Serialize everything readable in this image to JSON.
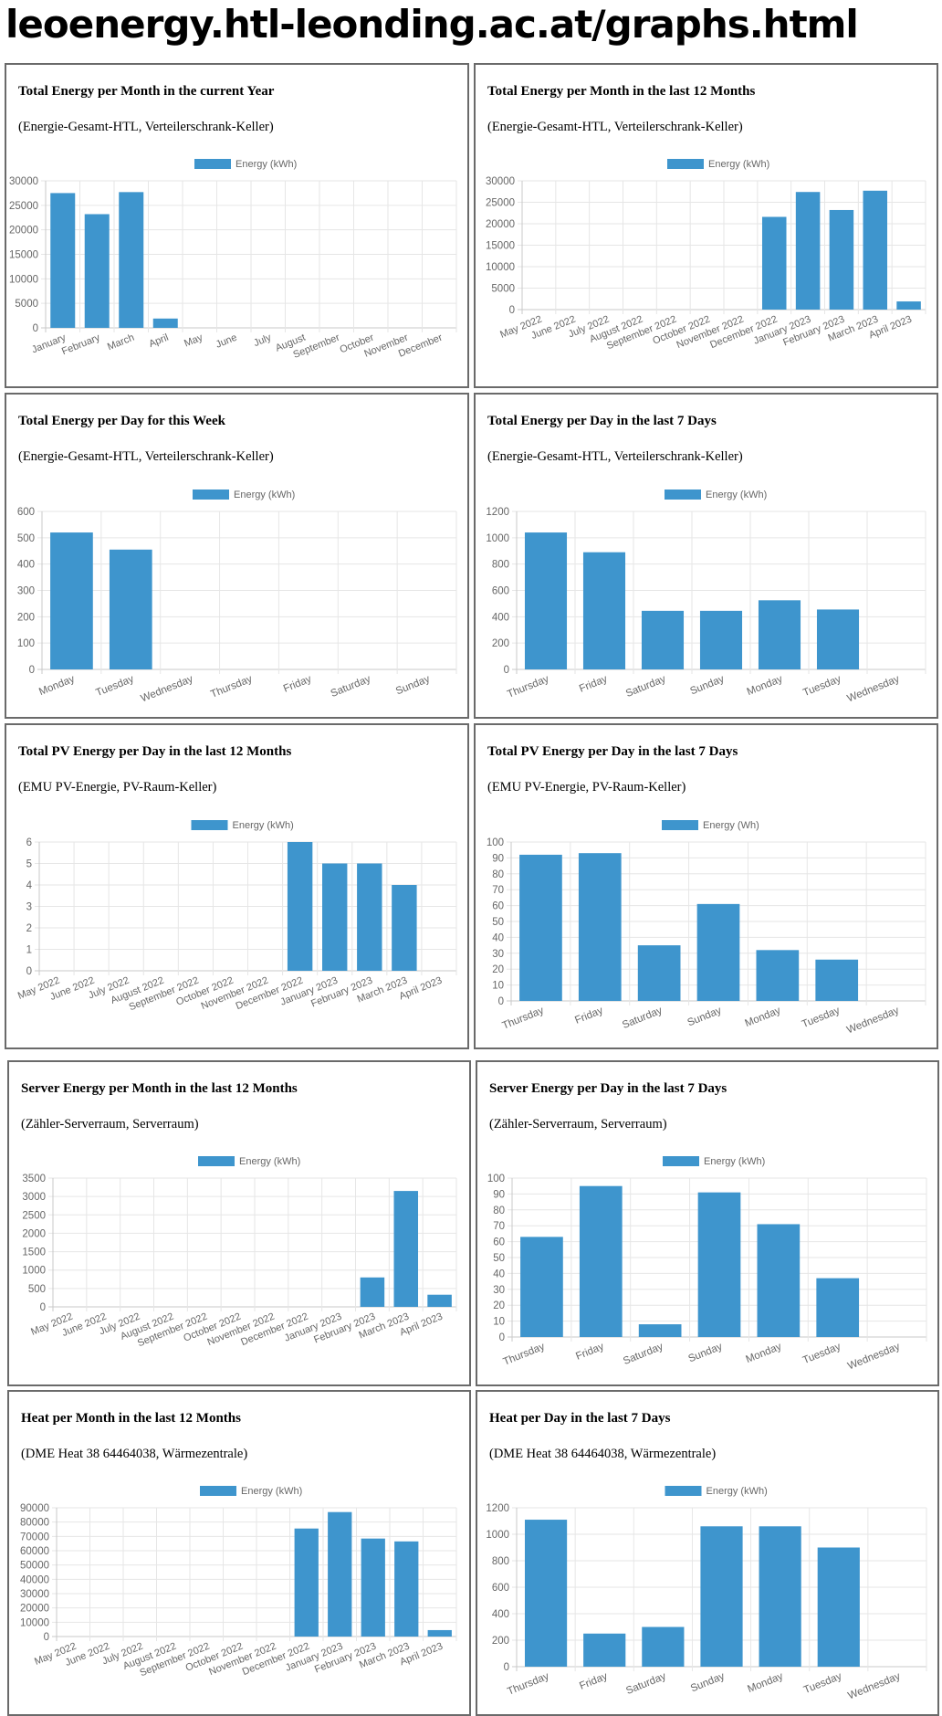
{
  "page": {
    "title": "leoenergy.htl-leonding.ac.at/graphs.html"
  },
  "colors": {
    "bar": "#3e95cd",
    "grid": "#e6e6e6",
    "axis": "#c8c8c8",
    "text": "#666666",
    "border": "#6a6a6a"
  },
  "chart_data": [
    {
      "type": "bar",
      "title": "Total Energy per Month in the current Year",
      "subtitle": "(Energie-Gesamt-HTL, Verteilerschrank-Keller)",
      "legend": "Energy (kWh)",
      "legend_position": "top-center",
      "grid": true,
      "categories": [
        "January",
        "February",
        "March",
        "April",
        "May",
        "June",
        "July",
        "August",
        "September",
        "October",
        "November",
        "December"
      ],
      "values": [
        27500,
        23200,
        27700,
        1900,
        0,
        0,
        0,
        0,
        0,
        0,
        0,
        0
      ],
      "ylim": [
        0,
        30000
      ],
      "yticks": [
        0,
        5000,
        10000,
        15000,
        20000,
        25000,
        30000
      ]
    },
    {
      "type": "bar",
      "title": "Total Energy per Month in the last 12 Months",
      "subtitle": "(Energie-Gesamt-HTL, Verteilerschrank-Keller)",
      "legend": "Energy (kWh)",
      "legend_position": "top-center",
      "grid": true,
      "categories": [
        "May 2022",
        "June 2022",
        "July 2022",
        "August 2022",
        "September 2022",
        "October 2022",
        "November 2022",
        "December 2022",
        "January 2023",
        "February 2023",
        "March 2023",
        "April 2023"
      ],
      "values": [
        0,
        0,
        0,
        0,
        0,
        0,
        0,
        21600,
        27400,
        23200,
        27700,
        1900
      ],
      "ylim": [
        0,
        30000
      ],
      "yticks": [
        0,
        5000,
        10000,
        15000,
        20000,
        25000,
        30000
      ]
    },
    {
      "type": "bar",
      "title": "Total Energy per Day for this Week",
      "subtitle": "(Energie-Gesamt-HTL, Verteilerschrank-Keller)",
      "legend": "Energy (kWh)",
      "legend_position": "top-center",
      "grid": true,
      "categories": [
        "Monday",
        "Tuesday",
        "Wednesday",
        "Thursday",
        "Friday",
        "Saturday",
        "Sunday"
      ],
      "values": [
        520,
        455,
        0,
        0,
        0,
        0,
        0
      ],
      "ylim": [
        0,
        600
      ],
      "yticks": [
        0,
        100,
        200,
        300,
        400,
        500,
        600
      ]
    },
    {
      "type": "bar",
      "title": "Total Energy per Day in the last 7 Days",
      "subtitle": "(Energie-Gesamt-HTL, Verteilerschrank-Keller)",
      "legend": "Energy (kWh)",
      "legend_position": "top-center",
      "grid": true,
      "categories": [
        "Thursday",
        "Friday",
        "Saturday",
        "Sunday",
        "Monday",
        "Tuesday",
        "Wednesday"
      ],
      "values": [
        1040,
        890,
        445,
        445,
        525,
        455,
        0
      ],
      "ylim": [
        0,
        1200
      ],
      "yticks": [
        0,
        200,
        400,
        600,
        800,
        1000,
        1200
      ]
    },
    {
      "type": "bar",
      "title": "Total PV Energy per Day in the last 12 Months",
      "subtitle": "(EMU PV-Energie, PV-Raum-Keller)",
      "legend": "Energy (kWh)",
      "legend_position": "top-center",
      "grid": true,
      "categories": [
        "May 2022",
        "June 2022",
        "July 2022",
        "August 2022",
        "September 2022",
        "October 2022",
        "November 2022",
        "December 2022",
        "January 2023",
        "February 2023",
        "March 2023",
        "April 2023"
      ],
      "values": [
        0,
        0,
        0,
        0,
        0,
        0,
        0,
        6,
        5,
        5,
        4,
        0
      ],
      "ylim": [
        0,
        6
      ],
      "yticks": [
        0,
        1,
        2,
        3,
        4,
        5,
        6
      ]
    },
    {
      "type": "bar",
      "title": "Total PV Energy per Day in the last 7 Days",
      "subtitle": "(EMU PV-Energie, PV-Raum-Keller)",
      "legend": "Energy (Wh)",
      "legend_position": "top-center",
      "grid": true,
      "categories": [
        "Thursday",
        "Friday",
        "Saturday",
        "Sunday",
        "Monday",
        "Tuesday",
        "Wednesday"
      ],
      "values": [
        92,
        93,
        35,
        61,
        32,
        26,
        0
      ],
      "ylim": [
        0,
        100
      ],
      "yticks": [
        0,
        10,
        20,
        30,
        40,
        50,
        60,
        70,
        80,
        90,
        100
      ]
    },
    {
      "type": "bar",
      "title": "Server Energy per Month in the last 12 Months",
      "subtitle": "(Zähler-Serverraum, Serverraum)",
      "legend": "Energy (kWh)",
      "legend_position": "top-center",
      "grid": true,
      "categories": [
        "May 2022",
        "June 2022",
        "July 2022",
        "August 2022",
        "September 2022",
        "October 2022",
        "November 2022",
        "December 2022",
        "January 2023",
        "February 2023",
        "March 2023",
        "April 2023"
      ],
      "values": [
        0,
        0,
        0,
        0,
        0,
        0,
        0,
        0,
        0,
        800,
        3150,
        330
      ],
      "ylim": [
        0,
        3500
      ],
      "yticks": [
        0,
        500,
        1000,
        1500,
        2000,
        2500,
        3000,
        3500
      ]
    },
    {
      "type": "bar",
      "title": "Server Energy per Day in the last 7 Days",
      "subtitle": "(Zähler-Serverraum, Serverraum)",
      "legend": "Energy (kWh)",
      "legend_position": "top-center",
      "grid": true,
      "categories": [
        "Thursday",
        "Friday",
        "Saturday",
        "Sunday",
        "Monday",
        "Tuesday",
        "Wednesday"
      ],
      "values": [
        63,
        95,
        8,
        91,
        71,
        37,
        0
      ],
      "ylim": [
        0,
        100
      ],
      "yticks": [
        0,
        10,
        20,
        30,
        40,
        50,
        60,
        70,
        80,
        90,
        100
      ]
    },
    {
      "type": "bar",
      "title": "Heat per Month in the last 12 Months",
      "subtitle": "(DME Heat 38 64464038, Wärmezentrale)",
      "legend": "Energy (kWh)",
      "legend_position": "top-center",
      "grid": true,
      "categories": [
        "May 2022",
        "June 2022",
        "July 2022",
        "August 2022",
        "September 2022",
        "October 2022",
        "November 2022",
        "December 2022",
        "January 2023",
        "February 2023",
        "March 2023",
        "April 2023"
      ],
      "values": [
        0,
        0,
        0,
        0,
        0,
        0,
        0,
        75500,
        87000,
        68500,
        66500,
        4500
      ],
      "ylim": [
        0,
        90000
      ],
      "yticks": [
        0,
        10000,
        20000,
        30000,
        40000,
        50000,
        60000,
        70000,
        80000,
        90000
      ]
    },
    {
      "type": "bar",
      "title": "Heat per Day in the last 7 Days",
      "subtitle": "(DME Heat 38 64464038, Wärmezentrale)",
      "legend": "Energy (kWh)",
      "legend_position": "top-center",
      "grid": true,
      "categories": [
        "Thursday",
        "Friday",
        "Saturday",
        "Sunday",
        "Monday",
        "Tuesday",
        "Wednesday"
      ],
      "values": [
        1110,
        250,
        300,
        1060,
        1060,
        900,
        0
      ],
      "ylim": [
        0,
        1200
      ],
      "yticks": [
        0,
        200,
        400,
        600,
        800,
        1000,
        1200
      ]
    }
  ]
}
